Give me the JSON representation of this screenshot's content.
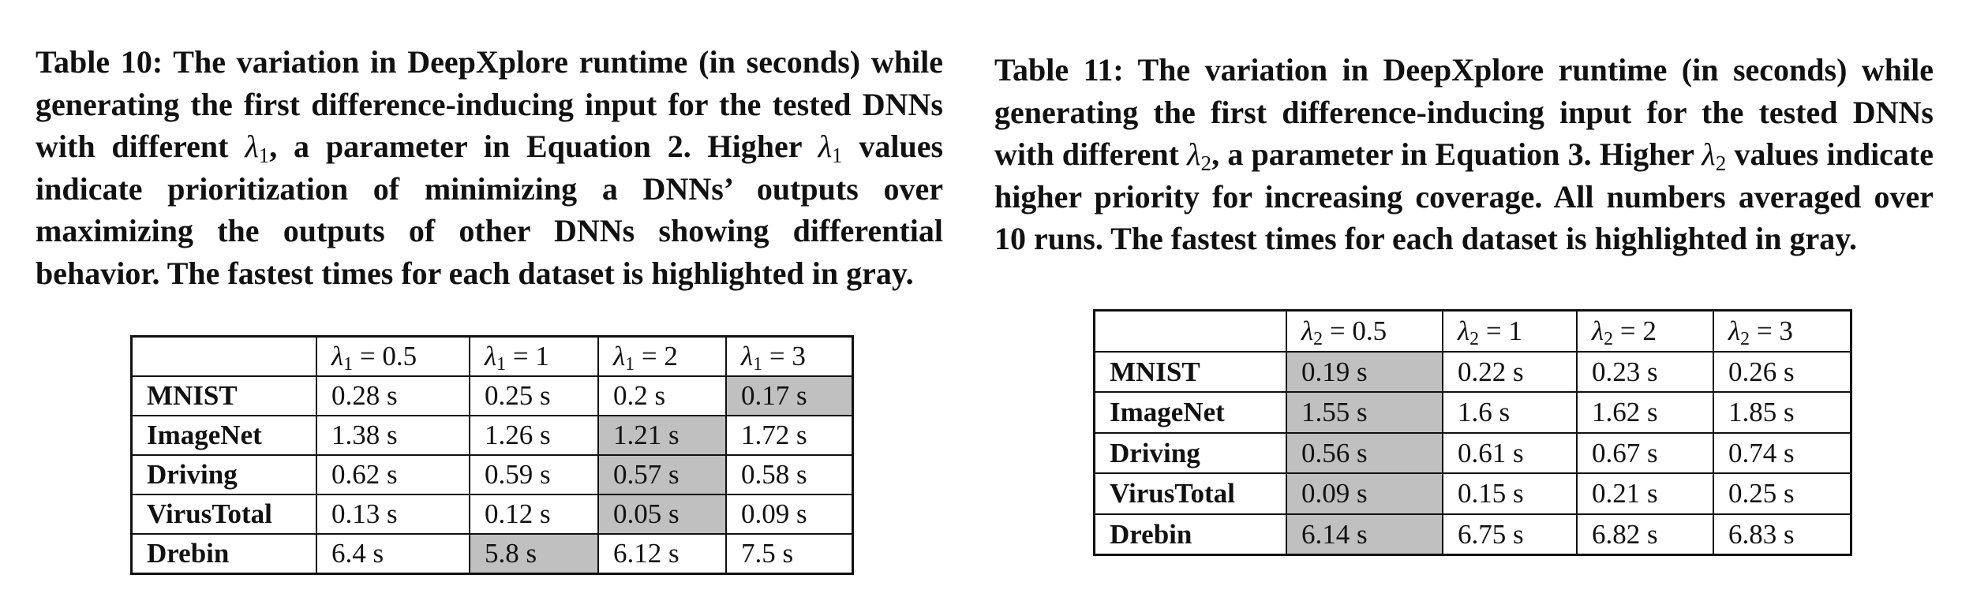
{
  "table10": {
    "caption_prefix": "Table 10: The variation in DeepXplore runtime (in seconds) while generating the first difference-inducing input for the tested DNNs with different ",
    "caption_lambda": "λ",
    "caption_lambda_sub": "1",
    "caption_middle": ", a parameter in Equation 2. Higher ",
    "caption_lambda2": "λ",
    "caption_lambda2_sub": "1",
    "caption_suffix": " values indicate prioritization of minimizing a DNNs’ outputs over maximizing the outputs of other DNNs showing differential behavior. The fastest times for each dataset is highlighted in gray.",
    "headers": [
      {
        "sym": "λ",
        "sub": "1",
        "rest": " = 0.5"
      },
      {
        "sym": "λ",
        "sub": "1",
        "rest": " = 1"
      },
      {
        "sym": "λ",
        "sub": "1",
        "rest": " = 2"
      },
      {
        "sym": "λ",
        "sub": "1",
        "rest": " = 3"
      }
    ],
    "rows": [
      {
        "label": "MNIST",
        "cells": [
          "0.28 s",
          "0.25 s",
          "0.2 s",
          "0.17 s"
        ],
        "highlight": 3
      },
      {
        "label": "ImageNet",
        "cells": [
          "1.38 s",
          "1.26 s",
          "1.21 s",
          "1.72 s"
        ],
        "highlight": 2
      },
      {
        "label": "Driving",
        "cells": [
          "0.62 s",
          "0.59 s",
          "0.57 s",
          "0.58 s"
        ],
        "highlight": 2
      },
      {
        "label": "VirusTotal",
        "cells": [
          "0.13 s",
          "0.12 s",
          "0.05 s",
          "0.09 s"
        ],
        "highlight": 2
      },
      {
        "label": "Drebin",
        "cells": [
          "6.4 s",
          "5.8 s",
          "6.12 s",
          "7.5 s"
        ],
        "highlight": 1
      }
    ]
  },
  "table11": {
    "caption_prefix": "Table 11: The variation in DeepXplore runtime (in seconds) while generating the first difference-inducing input for the tested DNNs with different ",
    "caption_lambda": "λ",
    "caption_lambda_sub": "2",
    "caption_middle": ", a parameter in Equation 3. Higher ",
    "caption_lambda2": "λ",
    "caption_lambda2_sub": "2",
    "caption_suffix": " values indicate higher priority for increasing coverage. All numbers averaged over 10 runs. The fastest times for each dataset is highlighted in gray.",
    "headers": [
      {
        "sym": "λ",
        "sub": "2",
        "rest": " = 0.5"
      },
      {
        "sym": "λ",
        "sub": "2",
        "rest": " = 1"
      },
      {
        "sym": "λ",
        "sub": "2",
        "rest": " = 2"
      },
      {
        "sym": "λ",
        "sub": "2",
        "rest": " = 3"
      }
    ],
    "rows": [
      {
        "label": "MNIST",
        "cells": [
          "0.19 s",
          "0.22 s",
          "0.23 s",
          "0.26 s"
        ],
        "highlight": 0
      },
      {
        "label": "ImageNet",
        "cells": [
          "1.55 s",
          "1.6 s",
          "1.62 s",
          "1.85 s"
        ],
        "highlight": 0
      },
      {
        "label": "Driving",
        "cells": [
          "0.56 s",
          "0.61 s",
          "0.67 s",
          "0.74 s"
        ],
        "highlight": 0
      },
      {
        "label": "VirusTotal",
        "cells": [
          "0.09 s",
          "0.15 s",
          "0.21 s",
          "0.25 s"
        ],
        "highlight": 0
      },
      {
        "label": "Drebin",
        "cells": [
          "6.14 s",
          "6.75 s",
          "6.82 s",
          "6.83 s"
        ],
        "highlight": 0
      }
    ]
  },
  "highlight_color": "#c0c0c0"
}
